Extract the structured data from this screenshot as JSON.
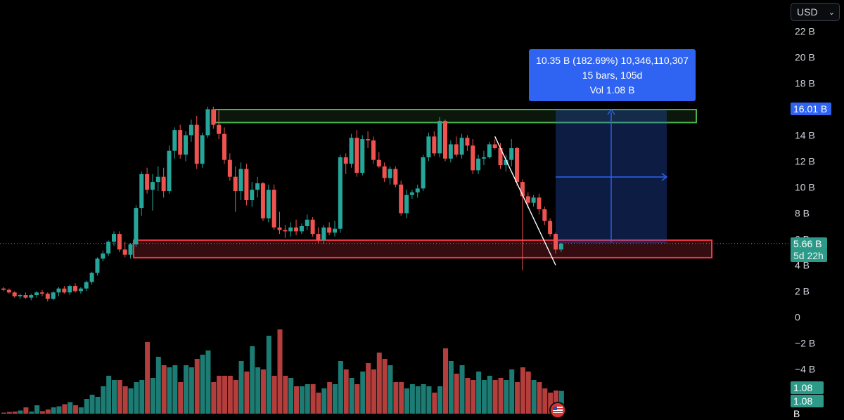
{
  "currency_selector": {
    "label": "USD",
    "icon": "chevron-down-icon"
  },
  "measure_tooltip": {
    "line1": "10.35 B (182.69%) 10,346,110,307",
    "line2": "15 bars, 105d",
    "line3": "Vol 1.08 B"
  },
  "price_labels": {
    "high_marker": "16.01 B",
    "last_price": "5.66 B",
    "countdown": "5d 22h",
    "volume_1": "1.08 B",
    "volume_2": "1.08 B"
  },
  "colors": {
    "up": "#26a69a",
    "down": "#ef5350",
    "resistance_zone": "#4caf50",
    "support_zone": "#f23645",
    "measure": "#2f63f2"
  },
  "chart_data": {
    "type": "candlestick",
    "y_axis": {
      "ticks": [
        "22 B",
        "20 B",
        "18 B",
        "16 B",
        "14 B",
        "12 B",
        "10 B",
        "8 B",
        "6 B",
        "4 B",
        "2 B",
        "0",
        "−2 B",
        "−4 B"
      ],
      "tick_values": [
        22,
        20,
        18,
        16,
        14,
        12,
        10,
        8,
        6,
        4,
        2,
        0,
        -2,
        -4
      ],
      "unit": "B",
      "range": [
        -7.5,
        23.2
      ]
    },
    "ohlc": [
      [
        2.2,
        2.3,
        2.0,
        2.1
      ],
      [
        2.1,
        2.2,
        1.8,
        1.9
      ],
      [
        1.9,
        2.0,
        1.5,
        1.6
      ],
      [
        1.6,
        1.8,
        1.4,
        1.7
      ],
      [
        1.7,
        1.9,
        1.4,
        1.5
      ],
      [
        1.5,
        1.8,
        1.3,
        1.7
      ],
      [
        1.7,
        2.0,
        1.5,
        1.9
      ],
      [
        1.9,
        2.1,
        1.6,
        1.8
      ],
      [
        1.8,
        1.9,
        1.2,
        1.4
      ],
      [
        1.4,
        2.0,
        1.3,
        1.9
      ],
      [
        1.9,
        2.3,
        1.6,
        2.2
      ],
      [
        2.2,
        2.4,
        1.8,
        1.9
      ],
      [
        1.9,
        2.5,
        1.7,
        2.4
      ],
      [
        2.4,
        2.6,
        1.9,
        2.0
      ],
      [
        2.0,
        2.3,
        1.8,
        2.2
      ],
      [
        2.2,
        2.8,
        2.0,
        2.7
      ],
      [
        2.7,
        3.5,
        2.5,
        3.4
      ],
      [
        3.4,
        4.6,
        3.2,
        4.5
      ],
      [
        4.5,
        5.1,
        4.3,
        4.9
      ],
      [
        4.9,
        5.9,
        4.7,
        5.8
      ],
      [
        5.8,
        6.6,
        5.5,
        6.4
      ],
      [
        6.4,
        6.6,
        5.0,
        5.2
      ],
      [
        5.2,
        5.8,
        4.6,
        4.8
      ],
      [
        4.8,
        5.7,
        4.5,
        5.6
      ],
      [
        5.6,
        8.6,
        5.4,
        8.4
      ],
      [
        8.4,
        11.2,
        7.8,
        11.0
      ],
      [
        11.0,
        11.5,
        9.5,
        9.8
      ],
      [
        9.8,
        11.0,
        8.2,
        10.4
      ],
      [
        10.4,
        11.6,
        9.7,
        10.8
      ],
      [
        10.8,
        11.5,
        9.2,
        9.7
      ],
      [
        9.7,
        13.2,
        9.5,
        12.8
      ],
      [
        12.8,
        14.6,
        12.2,
        14.4
      ],
      [
        14.4,
        14.8,
        12.2,
        12.5
      ],
      [
        12.5,
        14.3,
        12.0,
        14.0
      ],
      [
        14.0,
        15.2,
        13.5,
        14.8
      ],
      [
        14.8,
        15.5,
        11.4,
        11.8
      ],
      [
        11.8,
        14.2,
        11.5,
        14.0
      ],
      [
        14.0,
        16.2,
        13.8,
        16.0
      ],
      [
        16.0,
        16.2,
        14.5,
        14.8
      ],
      [
        14.8,
        15.9,
        13.7,
        14.1
      ],
      [
        14.1,
        14.6,
        11.8,
        12.1
      ],
      [
        12.1,
        12.6,
        10.5,
        10.8
      ],
      [
        10.8,
        11.6,
        8.1,
        9.7
      ],
      [
        9.7,
        11.9,
        9.0,
        11.4
      ],
      [
        11.4,
        11.8,
        8.6,
        9.0
      ],
      [
        9.0,
        10.4,
        8.5,
        9.8
      ],
      [
        9.8,
        10.8,
        9.2,
        10.3
      ],
      [
        10.3,
        10.4,
        7.4,
        7.6
      ],
      [
        7.6,
        10.2,
        7.3,
        9.8
      ],
      [
        9.8,
        10.2,
        6.7,
        6.9
      ],
      [
        6.9,
        8.1,
        6.4,
        6.7
      ],
      [
        6.7,
        7.1,
        6.1,
        6.6
      ],
      [
        6.6,
        7.3,
        6.2,
        6.9
      ],
      [
        6.9,
        7.5,
        6.3,
        6.6
      ],
      [
        6.6,
        7.2,
        6.4,
        7.0
      ],
      [
        7.0,
        7.9,
        6.7,
        7.5
      ],
      [
        7.5,
        7.7,
        6.2,
        6.4
      ],
      [
        6.4,
        6.9,
        5.7,
        5.9
      ],
      [
        5.9,
        7.1,
        5.6,
        6.9
      ],
      [
        6.9,
        7.3,
        6.3,
        6.5
      ],
      [
        6.5,
        7.4,
        6.2,
        6.8
      ],
      [
        6.8,
        12.5,
        6.5,
        12.3
      ],
      [
        12.3,
        12.6,
        11.0,
        11.8
      ],
      [
        11.8,
        14.1,
        11.5,
        13.8
      ],
      [
        13.8,
        14.4,
        10.8,
        11.1
      ],
      [
        11.1,
        14.0,
        10.9,
        13.7
      ],
      [
        13.7,
        14.3,
        13.0,
        13.6
      ],
      [
        13.6,
        13.9,
        11.8,
        12.1
      ],
      [
        12.1,
        12.7,
        11.5,
        11.6
      ],
      [
        11.6,
        11.9,
        10.4,
        10.7
      ],
      [
        10.7,
        11.6,
        10.2,
        11.4
      ],
      [
        11.4,
        11.6,
        10.0,
        10.2
      ],
      [
        10.2,
        10.5,
        7.8,
        8.0
      ],
      [
        8.0,
        9.8,
        7.6,
        9.4
      ],
      [
        9.4,
        9.8,
        9.1,
        9.6
      ],
      [
        9.6,
        10.2,
        9.2,
        9.9
      ],
      [
        9.9,
        12.5,
        9.7,
        12.3
      ],
      [
        12.3,
        14.2,
        12.0,
        13.9
      ],
      [
        13.9,
        14.3,
        12.4,
        12.6
      ],
      [
        12.6,
        15.4,
        12.3,
        15.1
      ],
      [
        15.1,
        15.2,
        12.0,
        12.2
      ],
      [
        12.2,
        13.6,
        11.9,
        13.3
      ],
      [
        13.3,
        13.9,
        12.3,
        12.5
      ],
      [
        12.5,
        14.1,
        12.2,
        13.8
      ],
      [
        13.8,
        14.0,
        12.8,
        13.2
      ],
      [
        13.2,
        13.7,
        11.0,
        11.3
      ],
      [
        11.3,
        12.5,
        11.0,
        12.2
      ],
      [
        12.2,
        12.8,
        11.7,
        12.3
      ],
      [
        12.3,
        13.5,
        12.2,
        13.3
      ],
      [
        13.3,
        13.7,
        12.9,
        13.0
      ],
      [
        13.0,
        13.4,
        11.4,
        11.7
      ],
      [
        11.7,
        12.5,
        11.2,
        12.1
      ],
      [
        12.1,
        13.7,
        11.6,
        13.0
      ],
      [
        13.0,
        13.1,
        10.1,
        10.4
      ],
      [
        10.4,
        10.6,
        3.6,
        9.3
      ],
      [
        9.3,
        9.6,
        8.4,
        8.8
      ],
      [
        8.8,
        9.4,
        8.5,
        9.2
      ],
      [
        9.2,
        9.5,
        7.9,
        8.3
      ],
      [
        8.3,
        8.5,
        7.1,
        7.4
      ],
      [
        7.4,
        7.6,
        6.2,
        6.4
      ],
      [
        6.4,
        6.5,
        4.9,
        5.2
      ],
      [
        5.2,
        5.7,
        5.0,
        5.66
      ]
    ],
    "volume": [
      0.05,
      0.08,
      0.1,
      0.15,
      0.3,
      0.1,
      0.4,
      0.12,
      0.2,
      0.3,
      0.35,
      0.45,
      0.55,
      0.4,
      0.3,
      0.7,
      0.9,
      0.8,
      1.3,
      1.8,
      1.6,
      1.6,
      1.3,
      1.2,
      1.5,
      1.6,
      3.4,
      1.7,
      2.7,
      2.3,
      2.2,
      2.3,
      1.5,
      2.3,
      2.2,
      2.6,
      2.8,
      3.0,
      1.5,
      1.8,
      1.8,
      1.8,
      1.6,
      2.5,
      2.0,
      3.2,
      2.2,
      2.1,
      3.7,
      1.8,
      4.0,
      1.8,
      1.7,
      1.3,
      1.3,
      1.4,
      1.4,
      1.0,
      1.2,
      1.5,
      1.4,
      2.5,
      2.1,
      1.7,
      1.4,
      2.0,
      2.4,
      2.1,
      2.9,
      2.6,
      2.3,
      1.5,
      1.5,
      1.2,
      1.4,
      1.3,
      1.4,
      1.3,
      1.0,
      1.3,
      3.1,
      2.5,
      1.9,
      2.3,
      1.7,
      1.6,
      2.0,
      1.6,
      1.8,
      1.6,
      1.7,
      1.6,
      2.1,
      1.5,
      2.2,
      2.0,
      1.6,
      1.5,
      1.2,
      1.0,
      1.1,
      1.08
    ],
    "annotations": {
      "resistance_zone": {
        "top": 16.0,
        "bottom": 15.0
      },
      "support_zone": {
        "top": 5.95,
        "bottom": 4.6
      },
      "trendline": {
        "from_bar": 89,
        "from_price": 13.9,
        "to_bar": 100,
        "to_price": 4.0
      },
      "last_price_line": 5.66
    },
    "grid": false,
    "legend": "none"
  }
}
